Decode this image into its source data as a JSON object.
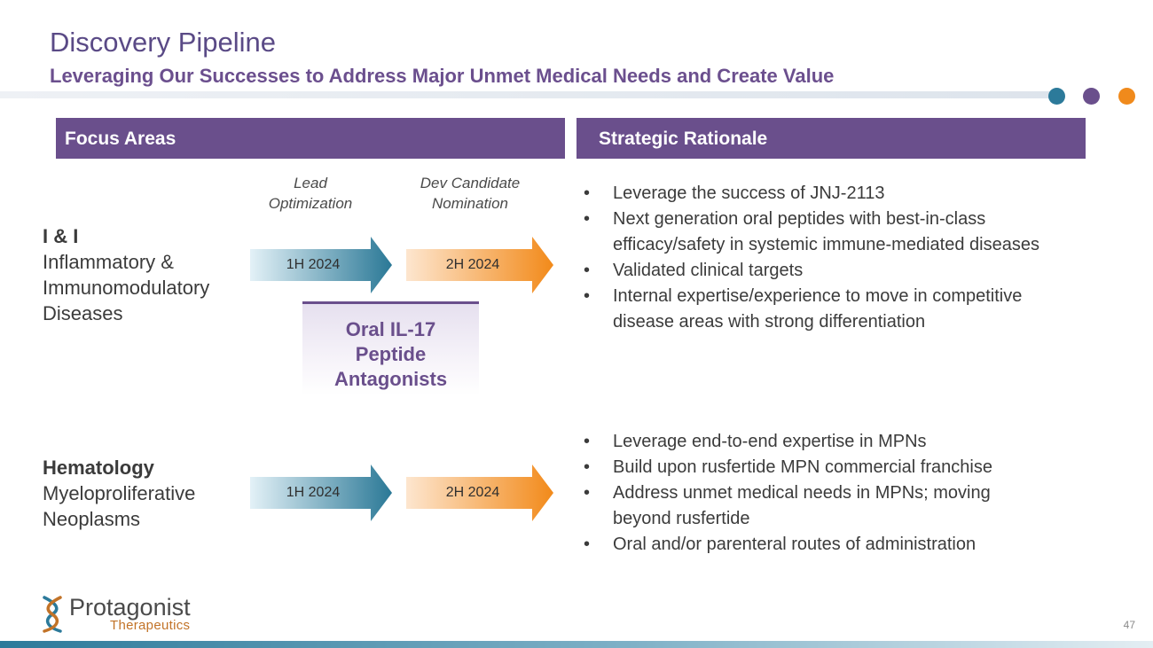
{
  "header": {
    "title": "Discovery Pipeline",
    "subtitle": "Leveraging Our Successes to Address Major Unmet Medical Needs and Create Value"
  },
  "colors": {
    "purple": "#6a4f8c",
    "teal": "#2c7a9a",
    "orange": "#f08a1c"
  },
  "sections": {
    "focus_areas": "Focus Areas",
    "strategic_rationale": "Strategic Rationale"
  },
  "milestones": {
    "lead_optimization": [
      "Lead",
      "Optimization"
    ],
    "dev_candidate": [
      "Dev Candidate",
      "Nomination"
    ]
  },
  "rows": [
    {
      "name": "I & I",
      "description": [
        "Inflammatory &",
        "Immunomodulatory",
        "Diseases"
      ],
      "lead_date": "1H 2024",
      "dev_date": "2H 2024",
      "bullets": [
        [
          "Leverage the success of JNJ-2113"
        ],
        [
          "Next generation oral peptides with best-in-class",
          "efficacy/safety in systemic immune-mediated diseases"
        ],
        [
          "Validated clinical targets"
        ],
        [
          "Internal expertise/experience to move in competitive",
          "disease areas with strong differentiation"
        ]
      ]
    },
    {
      "name": "Hematology",
      "description": [
        "Myeloproliferative",
        "Neoplasms"
      ],
      "lead_date": "1H 2024",
      "dev_date": "2H 2024",
      "bullets": [
        [
          "Leverage end-to-end expertise in MPNs"
        ],
        [
          "Build upon rusfertide MPN commercial franchise"
        ],
        [
          "Address unmet medical needs in MPNs; moving",
          "beyond rusfertide"
        ],
        [
          "Oral and/or parenteral routes of administration"
        ]
      ]
    }
  ],
  "program": [
    "Oral IL-17",
    "Peptide",
    "Antagonists"
  ],
  "logo": {
    "name": "Protagonist",
    "sub": "Therapeutics"
  },
  "page_number": "47"
}
